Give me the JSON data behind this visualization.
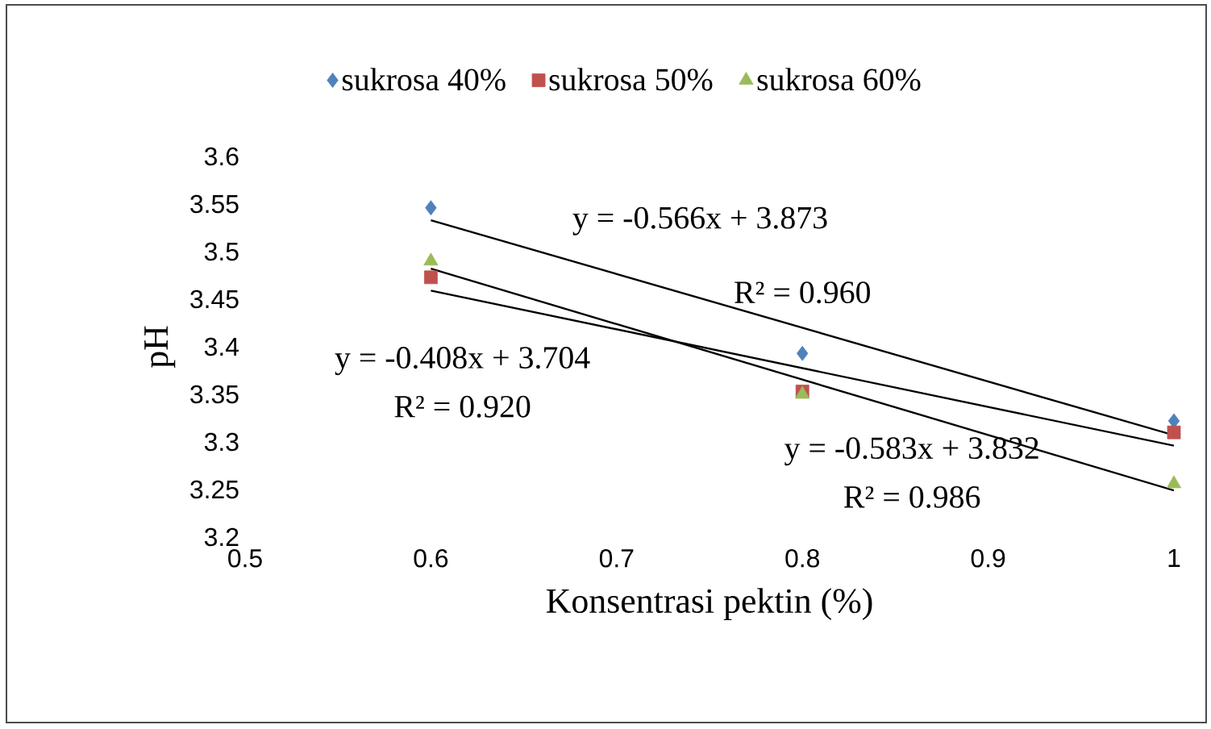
{
  "chart_data": {
    "type": "scatter",
    "xlabel": "Konsentrasi pektin (%)",
    "ylabel": "pH",
    "xlim": [
      0.5,
      1
    ],
    "ylim": [
      3.2,
      3.6
    ],
    "xticks": [
      0.5,
      0.6,
      0.7,
      0.8,
      0.9,
      1
    ],
    "yticks": [
      3.2,
      3.25,
      3.3,
      3.35,
      3.4,
      3.45,
      3.5,
      3.55,
      3.6
    ],
    "legend": "top",
    "grid": false,
    "series": [
      {
        "name": "sukrosa 40%",
        "color": "#4f81bd",
        "marker": "diamond",
        "x": [
          0.6,
          0.8,
          1
        ],
        "values": [
          3.546,
          3.393,
          3.322
        ]
      },
      {
        "name": "sukrosa 50%",
        "color": "#c0504d",
        "marker": "square",
        "x": [
          0.6,
          0.8,
          1
        ],
        "values": [
          3.473,
          3.353,
          3.31
        ]
      },
      {
        "name": "sukrosa 60%",
        "color": "#9bbb59",
        "marker": "triangle",
        "x": [
          0.6,
          0.8,
          1
        ],
        "values": [
          3.49,
          3.35,
          3.256
        ]
      },
      {
        "type": "line",
        "color": "#000000",
        "marker": "none",
        "x": [
          0.6,
          1
        ],
        "values": [
          3.533,
          3.307
        ]
      },
      {
        "type": "line",
        "color": "#000000",
        "marker": "none",
        "x": [
          0.6,
          1
        ],
        "values": [
          3.459,
          3.296
        ]
      },
      {
        "type": "line",
        "color": "#000000",
        "marker": "none",
        "x": [
          0.6,
          1
        ],
        "values": [
          3.482,
          3.249
        ]
      }
    ],
    "annotations": [
      "y = -0.566x + 3.873",
      "R² = 0.960",
      "y = -0.408x + 3.704",
      "R² = 0.920",
      "y = -0.583x + 3.832",
      "R² = 0.986"
    ]
  }
}
